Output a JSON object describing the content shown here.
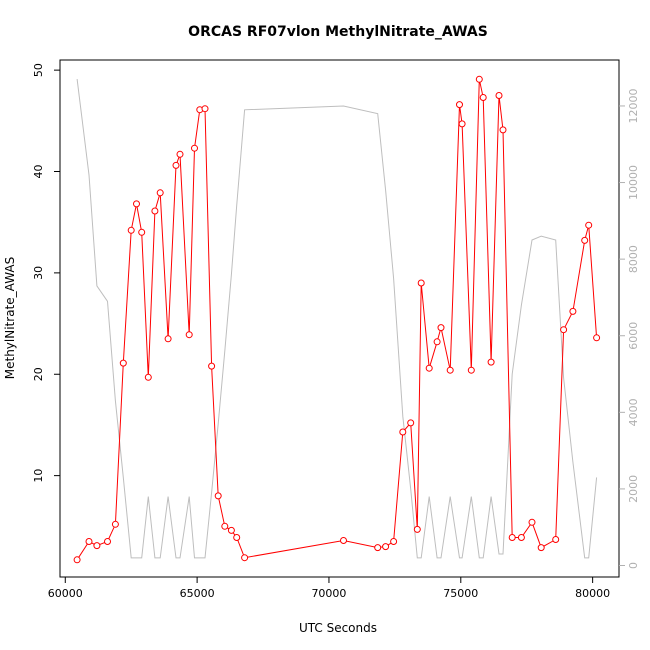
{
  "chart_data": {
    "type": "line",
    "title": "ORCAS RF07vlon MethylNitrate_AWAS",
    "xlabel": "UTC Seconds",
    "ylabel": "MethylNitrate_AWAS",
    "xlim": [
      59800,
      81000
    ],
    "ylim": [
      0,
      51
    ],
    "y2lim": [
      -300,
      13200
    ],
    "xticks": [
      60000,
      65000,
      70000,
      75000,
      80000
    ],
    "yticks": [
      10,
      20,
      30,
      40,
      50
    ],
    "y2ticks": [
      0,
      2000,
      4000,
      6000,
      8000,
      10000,
      12000
    ],
    "series": [
      {
        "axis": "left",
        "color": "#ff0000",
        "marker": "open-circle",
        "x": [
          60450,
          60900,
          61200,
          61600,
          61900,
          62200,
          62500,
          62700,
          62900,
          63150,
          63400,
          63600,
          63900,
          64200,
          64350,
          64700,
          64900,
          65100,
          65300,
          65550,
          65800,
          66050,
          66300,
          66500,
          66800,
          70550,
          71850,
          72150,
          72450,
          72800,
          73100,
          73350,
          73500,
          73800,
          74100,
          74250,
          74600,
          74950,
          75050,
          75400,
          75700,
          75850,
          76150,
          76450,
          76600,
          76950,
          77300,
          77700,
          78050,
          78600,
          78900,
          79250,
          79700,
          79850,
          80150
        ],
        "y": [
          1.7,
          3.5,
          3.1,
          3.5,
          5.2,
          21.1,
          34.2,
          36.8,
          34.0,
          19.7,
          36.1,
          37.9,
          23.5,
          40.6,
          41.7,
          23.9,
          42.3,
          46.1,
          46.2,
          20.8,
          8.0,
          5.0,
          4.6,
          3.9,
          1.9,
          3.6,
          2.9,
          3.0,
          3.5,
          14.3,
          15.2,
          4.7,
          29.0,
          20.6,
          23.2,
          24.6,
          20.4,
          46.6,
          44.7,
          20.4,
          49.1,
          47.3,
          21.2,
          47.5,
          44.1,
          3.9,
          3.9,
          5.4,
          2.9,
          3.7,
          24.4,
          26.2,
          33.2,
          34.7,
          23.6
        ]
      },
      {
        "axis": "right",
        "color": "#bebebe",
        "x": [
          60450,
          60900,
          61200,
          61600,
          61900,
          62200,
          62500,
          62700,
          62900,
          63150,
          63400,
          63600,
          63900,
          64200,
          64350,
          64700,
          64900,
          65100,
          65300,
          65550,
          65800,
          66050,
          66300,
          66500,
          66800,
          70550,
          71850,
          72150,
          72450,
          72800,
          73100,
          73350,
          73500,
          73800,
          74100,
          74250,
          74600,
          74950,
          75050,
          75400,
          75700,
          75850,
          76150,
          76450,
          76600,
          76950,
          77300,
          77700,
          78050,
          78600,
          78900,
          79250,
          79700,
          79850,
          80150
        ],
        "y": [
          12700,
          10200,
          7300,
          6900,
          4300,
          2300,
          200,
          200,
          200,
          1800,
          200,
          200,
          1800,
          200,
          200,
          1800,
          200,
          200,
          200,
          1900,
          3700,
          5600,
          7600,
          9400,
          11900,
          12000,
          11800,
          9800,
          7500,
          3900,
          2000,
          200,
          200,
          1800,
          200,
          200,
          1800,
          200,
          200,
          1800,
          200,
          200,
          1800,
          300,
          300,
          5000,
          6800,
          8500,
          8600,
          8500,
          4900,
          2700,
          200,
          200,
          2300
        ]
      }
    ]
  }
}
